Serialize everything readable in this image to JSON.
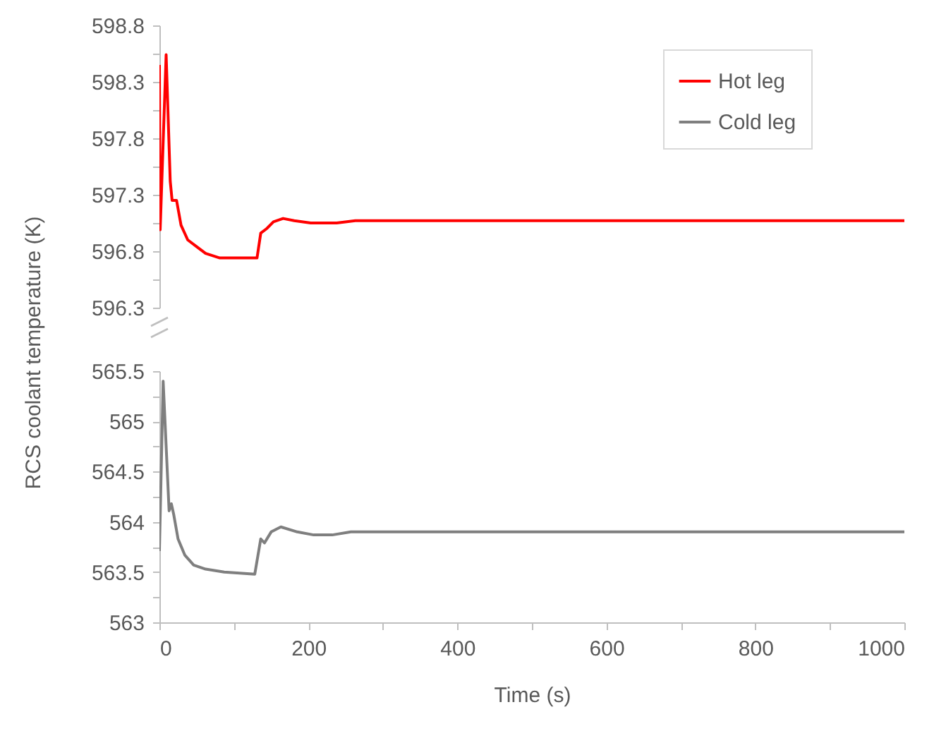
{
  "chart_data": [
    {
      "type": "line",
      "ylabel": "RCS coolant temperature (K)",
      "legend": "top right",
      "tick_labels": "y",
      "xlim": [
        0,
        1000
      ],
      "ylim": [
        596.3,
        598.8
      ],
      "yticks": [
        596.3,
        {
          "value": 596.55,
          "label": null
        },
        596.8,
        {
          "value": 597.05,
          "label": null
        },
        597.3,
        {
          "value": 597.55,
          "label": null
        },
        597.8,
        {
          "value": 598.05,
          "label": null
        },
        598.3,
        {
          "value": 598.55,
          "label": null
        },
        598.8
      ],
      "series": [
        {
          "name": "Hot leg",
          "color": "#ff0000",
          "x": [
            0,
            1,
            9,
            14.5,
            17,
            23,
            29,
            38,
            50,
            62,
            81,
            131,
            136,
            144,
            153,
            166,
            181,
            203,
            238,
            263,
            1000
          ],
          "values": [
            598.45,
            596.99,
            598.54,
            597.42,
            597.25,
            597.25,
            597.03,
            596.9,
            596.84,
            596.78,
            596.74,
            596.74,
            596.96,
            597.0,
            597.06,
            597.09,
            597.07,
            597.05,
            597.05,
            597.07,
            597.07
          ]
        }
      ]
    },
    {
      "type": "line",
      "xlabel": "Time (s)",
      "legend": false,
      "xlim": [
        0,
        1000
      ],
      "ylim": [
        563,
        565.5
      ],
      "xticks": [
        0,
        {
          "value": 100,
          "label": null
        },
        200,
        {
          "value": 300,
          "label": null
        },
        400,
        {
          "value": 500,
          "label": null
        },
        600,
        {
          "value": 700,
          "label": null
        },
        800,
        {
          "value": 900,
          "label": null
        },
        1000
      ],
      "yticks": [
        563,
        {
          "value": 563.25,
          "label": null
        },
        563.5,
        {
          "value": 563.75,
          "label": null
        },
        564,
        {
          "value": 564.25,
          "label": null
        },
        564.5,
        {
          "value": 564.75,
          "label": null
        },
        565,
        {
          "value": 565.25,
          "label": null
        },
        565.5
      ],
      "series": [
        {
          "name": "Cold leg",
          "color": "#7f7f7f",
          "x": [
            0,
            5,
            13,
            16,
            19,
            25,
            34,
            46,
            62,
            87,
            128,
            136,
            141,
            150,
            163,
            185,
            207,
            232,
            257,
            1000
          ],
          "values": [
            563.71,
            565.4,
            564.11,
            564.18,
            564.08,
            563.83,
            563.67,
            563.57,
            563.53,
            563.5,
            563.48,
            563.83,
            563.79,
            563.9,
            563.95,
            563.9,
            563.87,
            563.87,
            563.9,
            563.9
          ]
        }
      ]
    }
  ]
}
